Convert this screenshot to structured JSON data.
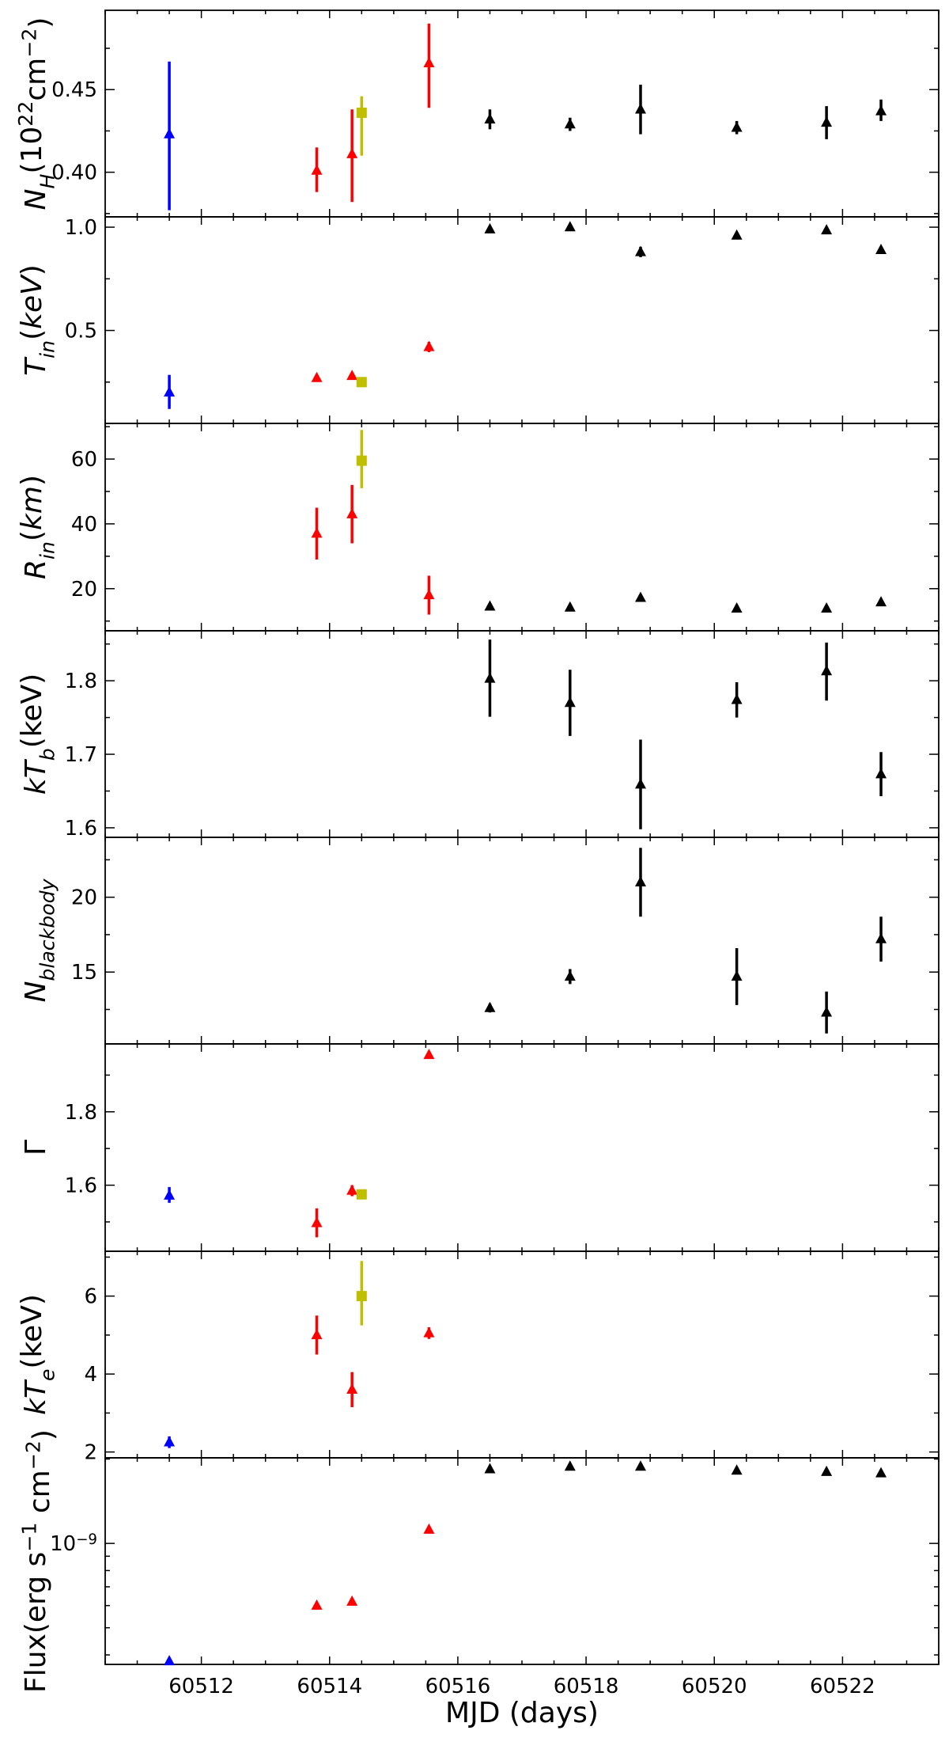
{
  "colors": {
    "blue": "#0000ff",
    "red": "#ff0000",
    "yellow": "#bfbf00",
    "black": "#000000",
    "frame": "#000000",
    "background": "#ffffff"
  },
  "chart_data": {
    "type": "scatter",
    "description_style": "stacked panels sharing x-axis, points with vertical error bars",
    "xlabel": "MJD (days)",
    "xlim": [
      60510.5,
      60523.5
    ],
    "x_ticks": [
      60512,
      60514,
      60516,
      60518,
      60520,
      60522
    ],
    "x_tick_labels": [
      "60512",
      "60514",
      "60516",
      "60518",
      "60520",
      "60522"
    ],
    "grid": false,
    "panels": [
      {
        "id": "nh",
        "ylabel_html": "N_H(10^22 cm^-2)",
        "ylabel_parts": [
          {
            "t": "N",
            "i": true,
            "s": 0
          },
          {
            "t": "H",
            "i": true,
            "s": -1
          },
          {
            "t": "(10",
            "i": false,
            "s": 0
          },
          {
            "t": "22",
            "i": false,
            "s": 1
          },
          {
            "t": "cm",
            "i": false,
            "s": 0
          },
          {
            "t": "−2",
            "i": false,
            "s": 1
          },
          {
            "t": ")",
            "i": false,
            "s": 0
          }
        ],
        "ylim": [
          0.373,
          0.498
        ],
        "yticks": [
          0.4,
          0.45
        ],
        "ytick_labels": [
          "0.40",
          "0.45"
        ],
        "series": [
          {
            "color": "blue",
            "marker": "triangle",
            "points": [
              {
                "x": 60511.5,
                "y": 0.423,
                "lo": 0.377,
                "hi": 0.467
              }
            ]
          },
          {
            "color": "red",
            "marker": "triangle",
            "points": [
              {
                "x": 60513.8,
                "y": 0.401,
                "lo": 0.388,
                "hi": 0.415
              },
              {
                "x": 60514.35,
                "y": 0.411,
                "lo": 0.382,
                "hi": 0.438
              },
              {
                "x": 60515.55,
                "y": 0.466,
                "lo": 0.439,
                "hi": 0.49
              }
            ]
          },
          {
            "color": "yellow",
            "marker": "square",
            "points": [
              {
                "x": 60514.5,
                "y": 0.436,
                "lo": 0.41,
                "hi": 0.446
              }
            ]
          },
          {
            "color": "black",
            "marker": "triangle",
            "points": [
              {
                "x": 60516.5,
                "y": 0.432,
                "lo": 0.426,
                "hi": 0.438
              },
              {
                "x": 60517.75,
                "y": 0.429,
                "lo": 0.425,
                "hi": 0.433
              },
              {
                "x": 60518.85,
                "y": 0.438,
                "lo": 0.423,
                "hi": 0.453
              },
              {
                "x": 60520.35,
                "y": 0.427,
                "lo": 0.423,
                "hi": 0.431
              },
              {
                "x": 60521.75,
                "y": 0.43,
                "lo": 0.42,
                "hi": 0.44
              },
              {
                "x": 60522.6,
                "y": 0.437,
                "lo": 0.431,
                "hi": 0.444
              }
            ]
          }
        ]
      },
      {
        "id": "tin",
        "ylabel_parts": [
          {
            "t": "T",
            "i": true,
            "s": 0
          },
          {
            "t": "in",
            "i": true,
            "s": -1
          },
          {
            "t": "(",
            "i": false,
            "s": 0
          },
          {
            "t": "keV",
            "i": true,
            "s": 0
          },
          {
            "t": ")",
            "i": false,
            "s": 0
          }
        ],
        "ylim": [
          0.05,
          1.05
        ],
        "yticks": [
          0.5,
          1.0
        ],
        "ytick_labels": [
          "0.5",
          "1.0"
        ],
        "series": [
          {
            "color": "blue",
            "marker": "triangle",
            "points": [
              {
                "x": 60511.5,
                "y": 0.2,
                "lo": 0.12,
                "hi": 0.285
              }
            ]
          },
          {
            "color": "red",
            "marker": "triangle",
            "points": [
              {
                "x": 60513.8,
                "y": 0.27,
                "lo": 0.255,
                "hi": 0.285
              },
              {
                "x": 60514.35,
                "y": 0.28,
                "lo": 0.265,
                "hi": 0.295
              },
              {
                "x": 60515.55,
                "y": 0.42,
                "lo": 0.395,
                "hi": 0.445
              }
            ]
          },
          {
            "color": "yellow",
            "marker": "square",
            "points": [
              {
                "x": 60514.5,
                "y": 0.25,
                "lo": 0.235,
                "hi": 0.265
              }
            ]
          },
          {
            "color": "black",
            "marker": "triangle",
            "points": [
              {
                "x": 60516.5,
                "y": 0.99,
                "lo": 0.98,
                "hi": 1.0
              },
              {
                "x": 60517.75,
                "y": 1.0,
                "lo": 0.985,
                "hi": 1.015
              },
              {
                "x": 60518.85,
                "y": 0.88,
                "lo": 0.855,
                "hi": 0.905
              },
              {
                "x": 60520.35,
                "y": 0.96,
                "lo": 0.95,
                "hi": 0.97
              },
              {
                "x": 60521.75,
                "y": 0.985,
                "lo": 0.975,
                "hi": 0.995
              },
              {
                "x": 60522.6,
                "y": 0.89,
                "lo": 0.88,
                "hi": 0.9
              }
            ]
          }
        ]
      },
      {
        "id": "rin",
        "ylabel_parts": [
          {
            "t": "R",
            "i": true,
            "s": 0
          },
          {
            "t": "in",
            "i": true,
            "s": -1
          },
          {
            "t": "(",
            "i": false,
            "s": 0
          },
          {
            "t": "km",
            "i": true,
            "s": 0
          },
          {
            "t": ")",
            "i": false,
            "s": 0
          }
        ],
        "ylim": [
          7,
          71
        ],
        "yticks": [
          20,
          40,
          60
        ],
        "ytick_labels": [
          "20",
          "40",
          "60"
        ],
        "series": [
          {
            "color": "red",
            "marker": "triangle",
            "points": [
              {
                "x": 60513.8,
                "y": 37,
                "lo": 29,
                "hi": 45
              },
              {
                "x": 60514.35,
                "y": 43,
                "lo": 34,
                "hi": 52
              },
              {
                "x": 60515.55,
                "y": 18,
                "lo": 12,
                "hi": 24
              }
            ]
          },
          {
            "color": "yellow",
            "marker": "square",
            "points": [
              {
                "x": 60514.5,
                "y": 59.5,
                "lo": 51,
                "hi": 69
              }
            ]
          },
          {
            "color": "black",
            "marker": "triangle",
            "points": [
              {
                "x": 60516.5,
                "y": 14.5,
                "lo": 13.5,
                "hi": 15.5
              },
              {
                "x": 60517.75,
                "y": 14.2,
                "lo": 13.2,
                "hi": 15.2
              },
              {
                "x": 60518.85,
                "y": 17.2,
                "lo": 16.2,
                "hi": 18.2
              },
              {
                "x": 60520.35,
                "y": 13.9,
                "lo": 12.9,
                "hi": 14.9
              },
              {
                "x": 60521.75,
                "y": 13.9,
                "lo": 12.9,
                "hi": 14.9
              },
              {
                "x": 60522.6,
                "y": 15.8,
                "lo": 14.8,
                "hi": 16.8
              }
            ]
          }
        ]
      },
      {
        "id": "ktb",
        "ylabel_parts": [
          {
            "t": "kT",
            "i": true,
            "s": 0
          },
          {
            "t": "b",
            "i": true,
            "s": -1
          },
          {
            "t": "(keV)",
            "i": false,
            "s": 0
          }
        ],
        "ylim": [
          1.587,
          1.868
        ],
        "yticks": [
          1.6,
          1.7,
          1.8
        ],
        "ytick_labels": [
          "1.6",
          "1.7",
          "1.8"
        ],
        "series": [
          {
            "color": "black",
            "marker": "triangle",
            "points": [
              {
                "x": 60516.5,
                "y": 1.803,
                "lo": 1.751,
                "hi": 1.856
              },
              {
                "x": 60517.75,
                "y": 1.77,
                "lo": 1.725,
                "hi": 1.815
              },
              {
                "x": 60518.85,
                "y": 1.659,
                "lo": 1.598,
                "hi": 1.72
              },
              {
                "x": 60520.35,
                "y": 1.774,
                "lo": 1.75,
                "hi": 1.798
              },
              {
                "x": 60521.75,
                "y": 1.813,
                "lo": 1.773,
                "hi": 1.852
              },
              {
                "x": 60522.6,
                "y": 1.673,
                "lo": 1.643,
                "hi": 1.703
              }
            ]
          }
        ]
      },
      {
        "id": "nbb",
        "ylabel_parts": [
          {
            "t": "N",
            "i": true,
            "s": 0
          },
          {
            "t": "blackbody",
            "i": true,
            "s": -1
          }
        ],
        "ylim": [
          10.2,
          24.0
        ],
        "yticks": [
          15,
          20
        ],
        "ytick_labels": [
          "15",
          "20"
        ],
        "series": [
          {
            "color": "black",
            "marker": "triangle",
            "points": [
              {
                "x": 60516.5,
                "y": 12.6,
                "lo": 12.3,
                "hi": 12.9
              },
              {
                "x": 60517.75,
                "y": 14.7,
                "lo": 14.2,
                "hi": 15.2
              },
              {
                "x": 60518.85,
                "y": 21.0,
                "lo": 18.7,
                "hi": 23.3
              },
              {
                "x": 60520.35,
                "y": 14.7,
                "lo": 12.8,
                "hi": 16.6
              },
              {
                "x": 60521.75,
                "y": 12.3,
                "lo": 10.9,
                "hi": 13.7
              },
              {
                "x": 60522.6,
                "y": 17.2,
                "lo": 15.7,
                "hi": 18.7
              }
            ]
          }
        ]
      },
      {
        "id": "gamma",
        "ylabel_parts": [
          {
            "t": "Γ",
            "i": false,
            "s": 0
          }
        ],
        "ylim": [
          1.42,
          1.985
        ],
        "yticks": [
          1.6,
          1.8
        ],
        "ytick_labels": [
          "1.6",
          "1.8"
        ],
        "series": [
          {
            "color": "blue",
            "marker": "triangle",
            "points": [
              {
                "x": 60511.5,
                "y": 1.572,
                "lo": 1.552,
                "hi": 1.595
              }
            ]
          },
          {
            "color": "red",
            "marker": "triangle",
            "points": [
              {
                "x": 60513.8,
                "y": 1.497,
                "lo": 1.458,
                "hi": 1.537
              },
              {
                "x": 60514.35,
                "y": 1.585,
                "lo": 1.57,
                "hi": 1.6
              },
              {
                "x": 60515.55,
                "y": 1.955,
                "lo": 1.945,
                "hi": 1.965
              }
            ]
          },
          {
            "color": "yellow",
            "marker": "square",
            "points": [
              {
                "x": 60514.5,
                "y": 1.575,
                "lo": 1.565,
                "hi": 1.585
              }
            ]
          }
        ]
      },
      {
        "id": "kte",
        "ylabel_parts": [
          {
            "t": "kT",
            "i": true,
            "s": 0
          },
          {
            "t": "e",
            "i": true,
            "s": -1
          },
          {
            "t": "(keV)",
            "i": false,
            "s": 0
          }
        ],
        "ylim": [
          1.85,
          7.15
        ],
        "yticks": [
          2,
          4,
          6
        ],
        "ytick_labels": [
          "2",
          "4",
          "6"
        ],
        "series": [
          {
            "color": "blue",
            "marker": "triangle",
            "points": [
              {
                "x": 60511.5,
                "y": 2.25,
                "lo": 2.1,
                "hi": 2.4
              }
            ]
          },
          {
            "color": "red",
            "marker": "triangle",
            "points": [
              {
                "x": 60513.8,
                "y": 5.0,
                "lo": 4.5,
                "hi": 5.5
              },
              {
                "x": 60514.35,
                "y": 3.6,
                "lo": 3.15,
                "hi": 4.05
              },
              {
                "x": 60515.55,
                "y": 5.05,
                "lo": 4.9,
                "hi": 5.2
              }
            ]
          },
          {
            "color": "yellow",
            "marker": "square",
            "points": [
              {
                "x": 60514.5,
                "y": 6.0,
                "lo": 5.25,
                "hi": 6.9
              }
            ]
          }
        ]
      },
      {
        "id": "flux",
        "ylabel_parts": [
          {
            "t": "Flux(erg s",
            "i": false,
            "s": 0
          },
          {
            "t": "−1",
            "i": false,
            "s": 1
          },
          {
            "t": " cm",
            "i": false,
            "s": 0
          },
          {
            "t": "−2",
            "i": false,
            "s": 1
          },
          {
            "t": ")",
            "i": false,
            "s": 0
          }
        ],
        "yscale": "log",
        "ylim": [
          3.7e-10,
          2.02e-09
        ],
        "yticks": [
          1e-09
        ],
        "ytick_labels_parts": [
          [
            {
              "t": "10",
              "s": 0
            },
            {
              "t": "−9",
              "s": 1
            }
          ]
        ],
        "minor_yticks": [
          4e-10,
          5e-10,
          6e-10,
          7e-10,
          8e-10,
          9e-10,
          2e-09
        ],
        "series": [
          {
            "color": "blue",
            "marker": "triangle",
            "points": [
              {
                "x": 60511.5,
                "y": 3.8e-10
              }
            ]
          },
          {
            "color": "red",
            "marker": "triangle",
            "points": [
              {
                "x": 60513.8,
                "y": 6e-10
              },
              {
                "x": 60514.35,
                "y": 6.2e-10
              },
              {
                "x": 60515.55,
                "y": 1.12e-09
              }
            ]
          },
          {
            "color": "black",
            "marker": "triangle",
            "points": [
              {
                "x": 60516.5,
                "y": 1.84e-09
              },
              {
                "x": 60517.75,
                "y": 1.88e-09
              },
              {
                "x": 60518.85,
                "y": 1.88e-09
              },
              {
                "x": 60520.35,
                "y": 1.82e-09
              },
              {
                "x": 60521.75,
                "y": 1.8e-09
              },
              {
                "x": 60522.6,
                "y": 1.78e-09
              }
            ]
          }
        ]
      }
    ]
  }
}
